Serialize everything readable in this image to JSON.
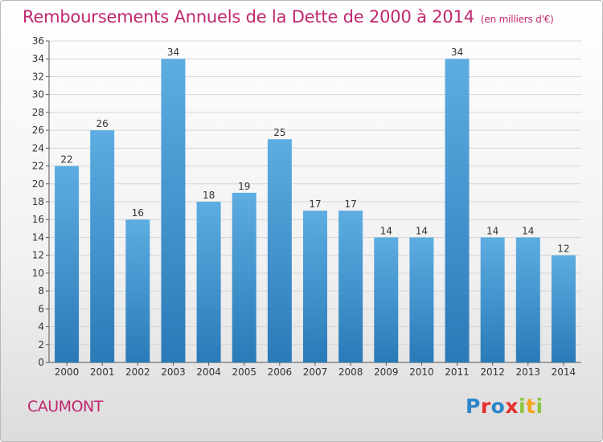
{
  "header": {
    "title": "Remboursements Annuels de la Dette de 2000 à 2014",
    "subtitle": "(en milliers d'€)"
  },
  "footer": {
    "town": "CAUMONT",
    "brand": "Proxiti"
  },
  "colors": {
    "accent": "#c0266e",
    "bar_top": "#5dade2",
    "bar_bottom": "#2a7ab8"
  },
  "chart_data": {
    "type": "bar",
    "title": "Remboursements Annuels de la Dette de 2000 à 2014",
    "xlabel": "",
    "ylabel": "",
    "categories": [
      "2000",
      "2001",
      "2002",
      "2003",
      "2004",
      "2005",
      "2006",
      "2007",
      "2008",
      "2009",
      "2010",
      "2011",
      "2012",
      "2013",
      "2014"
    ],
    "values": [
      22,
      26,
      16,
      34,
      18,
      19,
      25,
      17,
      17,
      14,
      14,
      34,
      14,
      14,
      12
    ],
    "ylim": [
      0,
      36
    ],
    "yticks": [
      0,
      2,
      4,
      6,
      8,
      10,
      12,
      14,
      16,
      18,
      20,
      22,
      24,
      26,
      28,
      30,
      32,
      34,
      36
    ],
    "grid": true
  }
}
